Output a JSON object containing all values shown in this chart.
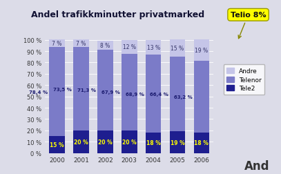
{
  "title": "Andel trafikkminutter privatmarked",
  "years": [
    "2000",
    "2001",
    "2002",
    "2003",
    "2004",
    "2005",
    "2006"
  ],
  "tele2": [
    15,
    20,
    20,
    20,
    18,
    19,
    18
  ],
  "telenor": [
    78.4,
    73.5,
    71.3,
    67.9,
    68.9,
    66.4,
    63.2
  ],
  "andre": [
    7,
    7,
    8,
    12,
    13,
    15,
    19
  ],
  "tele2_labels": [
    "15 %",
    "20 %",
    "20 %",
    "20 %",
    "18 %",
    "19 %",
    "18 %"
  ],
  "telenor_labels": [
    "78,4 %",
    "73,5 %",
    "71,3 %",
    "67,9 %",
    "68,9 %",
    "66,4 %",
    "63,2 %"
  ],
  "andre_labels": [
    "7 %",
    "7 %",
    "8 %",
    "12 %",
    "13 %",
    "15 %",
    "19 %"
  ],
  "color_tele2": "#1e1e8f",
  "color_telenor": "#7b7bc8",
  "color_andre": "#c5c5e8",
  "bg_color": "#dcdce8",
  "annotation_text": "Telio 8%",
  "ylabel_ticks": [
    0,
    10,
    20,
    30,
    40,
    50,
    60,
    70,
    80,
    90,
    100
  ],
  "ylabel_labels": [
    "0 %",
    "10 %",
    "20 %",
    "30 %",
    "40 %",
    "50 %",
    "60 %",
    "70 %",
    "80 %",
    "90 %",
    "100 %"
  ],
  "watermark": "And",
  "legend_labels": [
    "Andre",
    "Telenor",
    "Tele2"
  ]
}
